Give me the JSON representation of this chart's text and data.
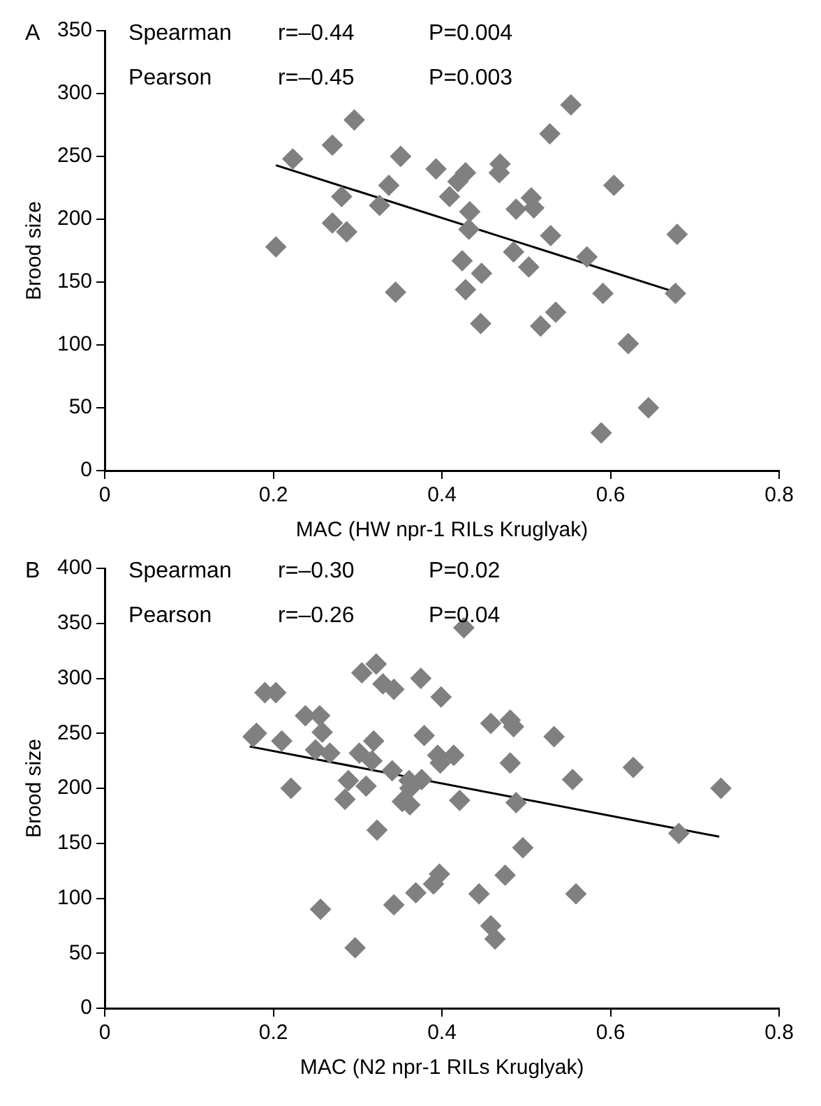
{
  "chart_data": [
    {
      "type": "scatter",
      "title": "A",
      "xlabel": "MAC (HW npr-1 RILs Kruglyak)",
      "ylabel": "Brood size",
      "annotations": [
        "Spearman",
        "r=–0.44",
        "P=0.004",
        "Pearson",
        "r=–0.45",
        "P=0.003"
      ],
      "xlim": [
        0,
        0.8
      ],
      "xticks": [
        0,
        0.2,
        0.4,
        0.6,
        0.8
      ],
      "ylim": [
        0,
        350
      ],
      "yticks": [
        0,
        50,
        100,
        150,
        200,
        250,
        300,
        350
      ],
      "grid": false,
      "series": [
        {
          "type": "scatter",
          "marker": "diamond",
          "color": "#808080",
          "x": [
            0.203,
            0.223,
            0.27,
            0.296,
            0.281,
            0.27,
            0.287,
            0.326,
            0.337,
            0.351,
            0.393,
            0.409,
            0.419,
            0.428,
            0.433,
            0.432,
            0.469,
            0.468,
            0.488,
            0.506,
            0.509,
            0.485,
            0.424,
            0.447,
            0.503,
            0.528,
            0.553,
            0.529,
            0.572,
            0.604,
            0.679,
            0.345,
            0.428,
            0.446,
            0.517,
            0.535,
            0.591,
            0.621,
            0.645,
            0.589,
            0.677
          ],
          "values": [
            178,
            248,
            259,
            279,
            218,
            197,
            190,
            211,
            227,
            250,
            240,
            218,
            230,
            237,
            206,
            192,
            244,
            237,
            208,
            217,
            209,
            174,
            167,
            157,
            162,
            268,
            291,
            187,
            170,
            227,
            188,
            142,
            144,
            117,
            115,
            126,
            141,
            101,
            50,
            30,
            141
          ]
        },
        {
          "type": "line",
          "color": "#000000",
          "x": [
            0.203,
            0.677
          ],
          "values": [
            243,
            142
          ]
        }
      ]
    },
    {
      "type": "scatter",
      "title": "B",
      "xlabel": "MAC (N2 npr-1 RILs Kruglyak)",
      "ylabel": "Brood size",
      "annotations": [
        "Spearman",
        "r=–0.30",
        "P=0.02",
        "Pearson",
        "r=–0.26",
        "P=0.04"
      ],
      "xlim": [
        0,
        0.8
      ],
      "xticks": [
        0,
        0.2,
        0.4,
        0.6,
        0.8
      ],
      "ylim": [
        0,
        400
      ],
      "yticks": [
        0,
        50,
        100,
        150,
        200,
        250,
        300,
        350,
        400
      ],
      "grid": false,
      "series": [
        {
          "type": "scatter",
          "marker": "diamond",
          "color": "#808080",
          "x": [
            0.426,
            0.19,
            0.203,
            0.176,
            0.18,
            0.21,
            0.221,
            0.238,
            0.255,
            0.258,
            0.25,
            0.267,
            0.305,
            0.322,
            0.33,
            0.343,
            0.375,
            0.399,
            0.302,
            0.319,
            0.317,
            0.341,
            0.379,
            0.395,
            0.414,
            0.398,
            0.289,
            0.285,
            0.31,
            0.361,
            0.376,
            0.421,
            0.458,
            0.481,
            0.485,
            0.481,
            0.533,
            0.555,
            0.627,
            0.731,
            0.488,
            0.323,
            0.353,
            0.362,
            0.362,
            0.681,
            0.496,
            0.475,
            0.397,
            0.39,
            0.369,
            0.343,
            0.256,
            0.444,
            0.559,
            0.458,
            0.463,
            0.297
          ],
          "values": [
            346,
            287,
            287,
            247,
            250,
            243,
            200,
            266,
            266,
            251,
            235,
            232,
            305,
            313,
            295,
            290,
            300,
            283,
            232,
            243,
            225,
            216,
            248,
            230,
            230,
            223,
            207,
            190,
            202,
            207,
            208,
            189,
            259,
            262,
            256,
            223,
            247,
            208,
            219,
            200,
            187,
            162,
            188,
            185,
            200,
            159,
            146,
            121,
            122,
            113,
            105,
            94,
            90,
            104,
            104,
            75,
            63,
            55
          ]
        },
        {
          "type": "line",
          "color": "#000000",
          "x": [
            0.172,
            0.729
          ],
          "values": [
            238,
            156
          ]
        }
      ]
    }
  ]
}
